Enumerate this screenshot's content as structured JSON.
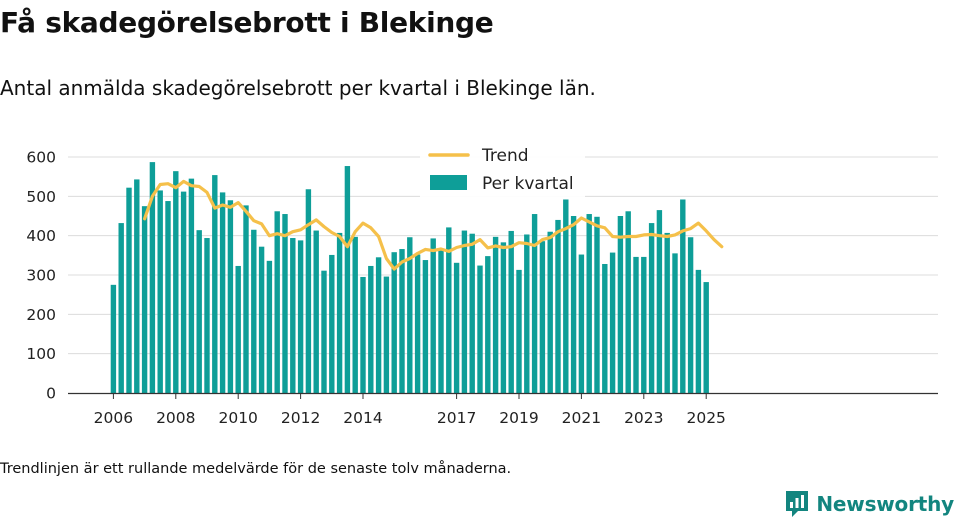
{
  "title": "Få skadegörelsebrott i Blekinge",
  "subtitle": "Antal anmälda skadegörelsebrott per kvartal i Blekinge län.",
  "footnote": "Trendlinjen är ett rullande medelvärde för de senaste tolv månaderna.",
  "brand": {
    "name": "Newsworthy",
    "logo_icon": "newsworthy-logo-icon",
    "color": "#13857f"
  },
  "colors": {
    "bars": "#0e9e98",
    "trend": "#f5c04a",
    "grid": "#dcdcdc",
    "axis": "#333333"
  },
  "chart_data": {
    "type": "bar",
    "grid": true,
    "legend_position": "top-center",
    "ylim": [
      0,
      600
    ],
    "yticks": [
      "0",
      "100",
      "200",
      "300",
      "400",
      "500",
      "600"
    ],
    "xticks": [
      "2006",
      "2008",
      "2010",
      "2012",
      "2014",
      "2017",
      "2019",
      "2021",
      "2023",
      "2025"
    ],
    "start_quarter": "2006-Q1",
    "series": [
      {
        "name": "Per kvartal",
        "type": "bar",
        "values": [
          275,
          432,
          522,
          543,
          475,
          587,
          515,
          488,
          564,
          512,
          545,
          414,
          394,
          554,
          510,
          490,
          323,
          477,
          415,
          372,
          336,
          462,
          455,
          394,
          388,
          518,
          413,
          311,
          351,
          407,
          577,
          397,
          295,
          323,
          345,
          296,
          358,
          366,
          396,
          352,
          338,
          393,
          366,
          421,
          331,
          413,
          405,
          324,
          348,
          397,
          383,
          412,
          313,
          403,
          455,
          386,
          410,
          440,
          492,
          450,
          352,
          455,
          448,
          328,
          357,
          450,
          462,
          346,
          346,
          432,
          465,
          407,
          355,
          492,
          396,
          313,
          282
        ]
      },
      {
        "name": "Trend",
        "type": "line",
        "start_index": 4,
        "values": [
          443,
          500,
          530,
          532,
          522,
          538,
          527,
          525,
          510,
          470,
          478,
          472,
          484,
          462,
          438,
          430,
          400,
          405,
          400,
          410,
          415,
          428,
          440,
          423,
          408,
          398,
          372,
          410,
          432,
          420,
          398,
          342,
          315,
          333,
          342,
          355,
          365,
          362,
          366,
          360,
          370,
          375,
          378,
          390,
          369,
          374,
          370,
          372,
          382,
          380,
          375,
          390,
          395,
          410,
          418,
          428,
          445,
          435,
          425,
          420,
          398,
          396,
          398,
          398,
          402,
          403,
          400,
          398,
          402,
          412,
          418,
          432,
          412,
          390,
          372
        ]
      }
    ]
  }
}
